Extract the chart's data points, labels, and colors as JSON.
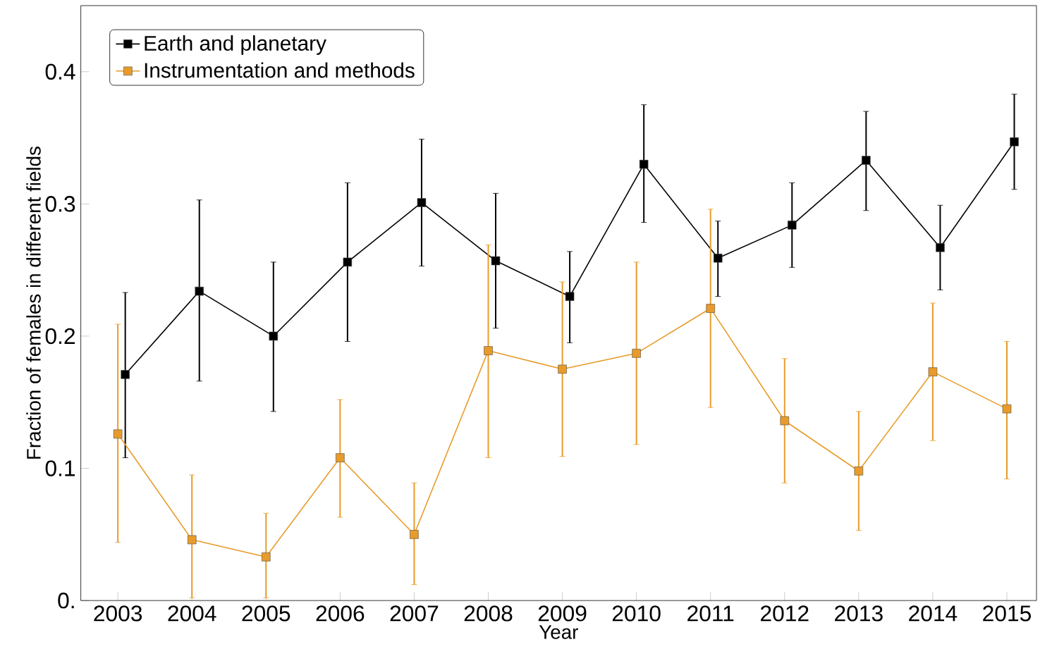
{
  "chart_data": {
    "type": "line",
    "xlabel": "Year",
    "ylabel": "Fraction of females in different fields",
    "xlim": [
      2002.5,
      2015.4
    ],
    "ylim": [
      0,
      0.45
    ],
    "xticks": [
      2003,
      2004,
      2005,
      2006,
      2007,
      2008,
      2009,
      2010,
      2011,
      2012,
      2013,
      2014,
      2015
    ],
    "yticks": [
      {
        "value": 0,
        "label": "0."
      },
      0.1,
      0.2,
      0.3,
      0.4
    ],
    "legend": "top left",
    "marker": "square",
    "series": [
      {
        "name": "Earth and planetary",
        "color": "#000000",
        "x": [
          2003.1,
          2004.1,
          2005.1,
          2006.1,
          2007.1,
          2008.1,
          2009.1,
          2010.1,
          2011.1,
          2012.1,
          2013.1,
          2014.1,
          2015.1
        ],
        "values": [
          0.171,
          0.234,
          0.2,
          0.256,
          0.301,
          0.257,
          0.23,
          0.33,
          0.259,
          0.284,
          0.333,
          0.267,
          0.347
        ],
        "errors": [
          [
            0.108,
            0.233
          ],
          [
            0.166,
            0.303
          ],
          [
            0.143,
            0.256
          ],
          [
            0.196,
            0.316
          ],
          [
            0.253,
            0.349
          ],
          [
            0.206,
            0.308
          ],
          [
            0.195,
            0.264
          ],
          [
            0.286,
            0.375
          ],
          [
            0.23,
            0.287
          ],
          [
            0.252,
            0.316
          ],
          [
            0.295,
            0.37
          ],
          [
            0.235,
            0.299
          ],
          [
            0.311,
            0.383
          ]
        ]
      },
      {
        "name": "Instrumentation and methods",
        "color": "#e89b2a",
        "x": [
          2003,
          2004,
          2005,
          2006,
          2007,
          2008,
          2009,
          2010,
          2011,
          2012,
          2013,
          2014,
          2015
        ],
        "values": [
          0.126,
          0.046,
          0.033,
          0.108,
          0.05,
          0.189,
          0.175,
          0.187,
          0.221,
          0.136,
          0.098,
          0.173,
          0.145
        ],
        "errors": [
          [
            0.044,
            0.209
          ],
          [
            0.002,
            0.095
          ],
          [
            0.002,
            0.066
          ],
          [
            0.063,
            0.152
          ],
          [
            0.012,
            0.089
          ],
          [
            0.108,
            0.269
          ],
          [
            0.109,
            0.241
          ],
          [
            0.118,
            0.256
          ],
          [
            0.146,
            0.296
          ],
          [
            0.089,
            0.183
          ],
          [
            0.053,
            0.143
          ],
          [
            0.121,
            0.225
          ],
          [
            0.092,
            0.196
          ]
        ]
      }
    ]
  }
}
